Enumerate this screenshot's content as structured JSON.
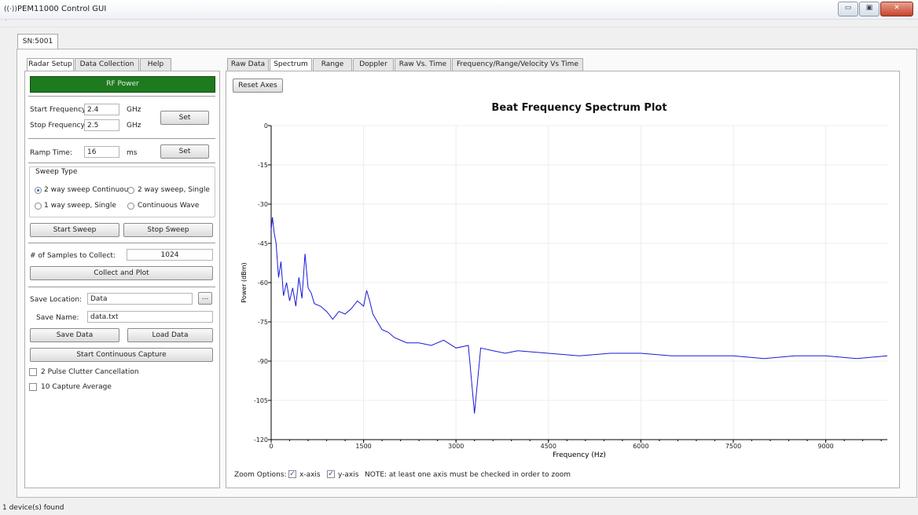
{
  "window": {
    "title": "PEM11000 Control GUI",
    "icon": "antenna-icon",
    "buttons": {
      "minimize": "▭",
      "maximize": "▣",
      "close": "✕"
    }
  },
  "menu_hint": "·",
  "device_tab": "SN:5001",
  "left_tabs": [
    "Radar Setup",
    "Data Collection",
    "Help"
  ],
  "radar_setup": {
    "rf_power": "RF Power",
    "start_frequency": {
      "label": "Start Frequency:",
      "value": "2.4",
      "unit": "GHz"
    },
    "stop_frequency": {
      "label": "Stop Frequency:",
      "value": "2.5",
      "unit": "GHz"
    },
    "set_label": "Set",
    "ramp_time": {
      "label": "Ramp Time:",
      "value": "16",
      "unit": "ms"
    },
    "sweep_type": {
      "title": "Sweep Type",
      "options": [
        "2 way sweep Continuou",
        "2 way sweep, Single",
        "1 way sweep, Single",
        "Continuous Wave"
      ],
      "selected": 0
    },
    "start_sweep": "Start Sweep",
    "stop_sweep": "Stop Sweep",
    "samples": {
      "label": "# of Samples to Collect:",
      "value": "1024"
    },
    "collect_and_plot": "Collect and Plot",
    "save_location": {
      "label": "Save Location:",
      "value": "Data",
      "browse": "..."
    },
    "save_name": {
      "label": "Save Name:",
      "value": "data.txt"
    },
    "save_data": "Save Data",
    "load_data": "Load Data",
    "start_continuous_capture": "Start Continuous Capture",
    "pulse_clutter": {
      "label": "2 Pulse Clutter Cancellation",
      "checked": false
    },
    "capture_average": {
      "label": "10 Capture Average",
      "checked": false
    }
  },
  "right_tabs": [
    "Raw Data",
    "Spectrum",
    "Range",
    "Doppler",
    "Raw Vs. Time",
    "Frequency/Range/Velocity Vs Time"
  ],
  "active_right_tab": 1,
  "reset_axes": "Reset Axes",
  "zoom": {
    "label": "Zoom Options:",
    "x_axis": {
      "label": "x-axis",
      "checked": true
    },
    "y_axis": {
      "label": "y-axis",
      "checked": true
    },
    "note": "NOTE: at least one axis must be checked in order to zoom"
  },
  "status": "1 device(s) found",
  "chart_data": {
    "type": "line",
    "title": "Beat Frequency Spectrum Plot",
    "xlabel": "Frequency (Hz)",
    "ylabel": "Power (dBm)",
    "xlim": [
      0,
      10000
    ],
    "ylim": [
      -120,
      0
    ],
    "xticks": [
      0,
      1500,
      3000,
      4500,
      6000,
      7500,
      9000
    ],
    "yticks": [
      0,
      -15,
      -30,
      -45,
      -60,
      -75,
      -90,
      -105,
      -120
    ],
    "grid": true,
    "color": "#1a1ad6",
    "series": [
      {
        "x": [
          0,
          20,
          50,
          80,
          120,
          160,
          200,
          250,
          300,
          350,
          400,
          450,
          500,
          550,
          600,
          650,
          700,
          800,
          900,
          1000,
          1100,
          1200,
          1300,
          1400,
          1500,
          1550,
          1600,
          1650,
          1700,
          1800,
          1900,
          2000,
          2200,
          2400,
          2600,
          2800,
          3000,
          3200,
          3300,
          3400,
          3600,
          3800,
          4000,
          4500,
          5000,
          5500,
          6000,
          6500,
          7000,
          7500,
          8000,
          8500,
          9000,
          9500,
          10000
        ],
        "y": [
          -40,
          -35,
          -41,
          -45,
          -58,
          -52,
          -65,
          -60,
          -67,
          -62,
          -69,
          -58,
          -66,
          -49,
          -62,
          -64,
          -68,
          -69,
          -71,
          -74,
          -71,
          -72,
          -70,
          -67,
          -69,
          -63,
          -67,
          -72,
          -74,
          -78,
          -79,
          -81,
          -83,
          -83,
          -84,
          -82,
          -85,
          -84,
          -110,
          -85,
          -86,
          -87,
          -86,
          -87,
          -88,
          -87,
          -87,
          -88,
          -88,
          -88,
          -89,
          -88,
          -88,
          -89,
          -88
        ]
      }
    ]
  }
}
